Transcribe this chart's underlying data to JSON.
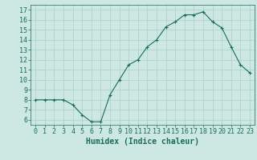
{
  "x": [
    0,
    1,
    2,
    3,
    4,
    5,
    6,
    7,
    8,
    9,
    10,
    11,
    12,
    13,
    14,
    15,
    16,
    17,
    18,
    19,
    20,
    21,
    22,
    23
  ],
  "y": [
    8.0,
    8.0,
    8.0,
    8.0,
    7.5,
    6.5,
    5.8,
    5.8,
    8.5,
    10.0,
    11.5,
    12.0,
    13.3,
    14.0,
    15.3,
    15.8,
    16.5,
    16.5,
    16.8,
    15.8,
    15.2,
    13.3,
    11.5,
    10.7
  ],
  "xlabel": "Humidex (Indice chaleur)",
  "ylim": [
    5.5,
    17.5
  ],
  "xlim": [
    -0.5,
    23.5
  ],
  "yticks": [
    6,
    7,
    8,
    9,
    10,
    11,
    12,
    13,
    14,
    15,
    16,
    17
  ],
  "xticks": [
    0,
    1,
    2,
    3,
    4,
    5,
    6,
    7,
    8,
    9,
    10,
    11,
    12,
    13,
    14,
    15,
    16,
    17,
    18,
    19,
    20,
    21,
    22,
    23
  ],
  "line_color": "#1a6b5a",
  "marker_color": "#1a6b5a",
  "bg_color": "#cde8e2",
  "grid_color": "#aacfc8",
  "axis_label_color": "#1a6b5a",
  "tick_label_color": "#1a6b5a",
  "xlabel_fontsize": 7,
  "tick_fontsize": 6
}
